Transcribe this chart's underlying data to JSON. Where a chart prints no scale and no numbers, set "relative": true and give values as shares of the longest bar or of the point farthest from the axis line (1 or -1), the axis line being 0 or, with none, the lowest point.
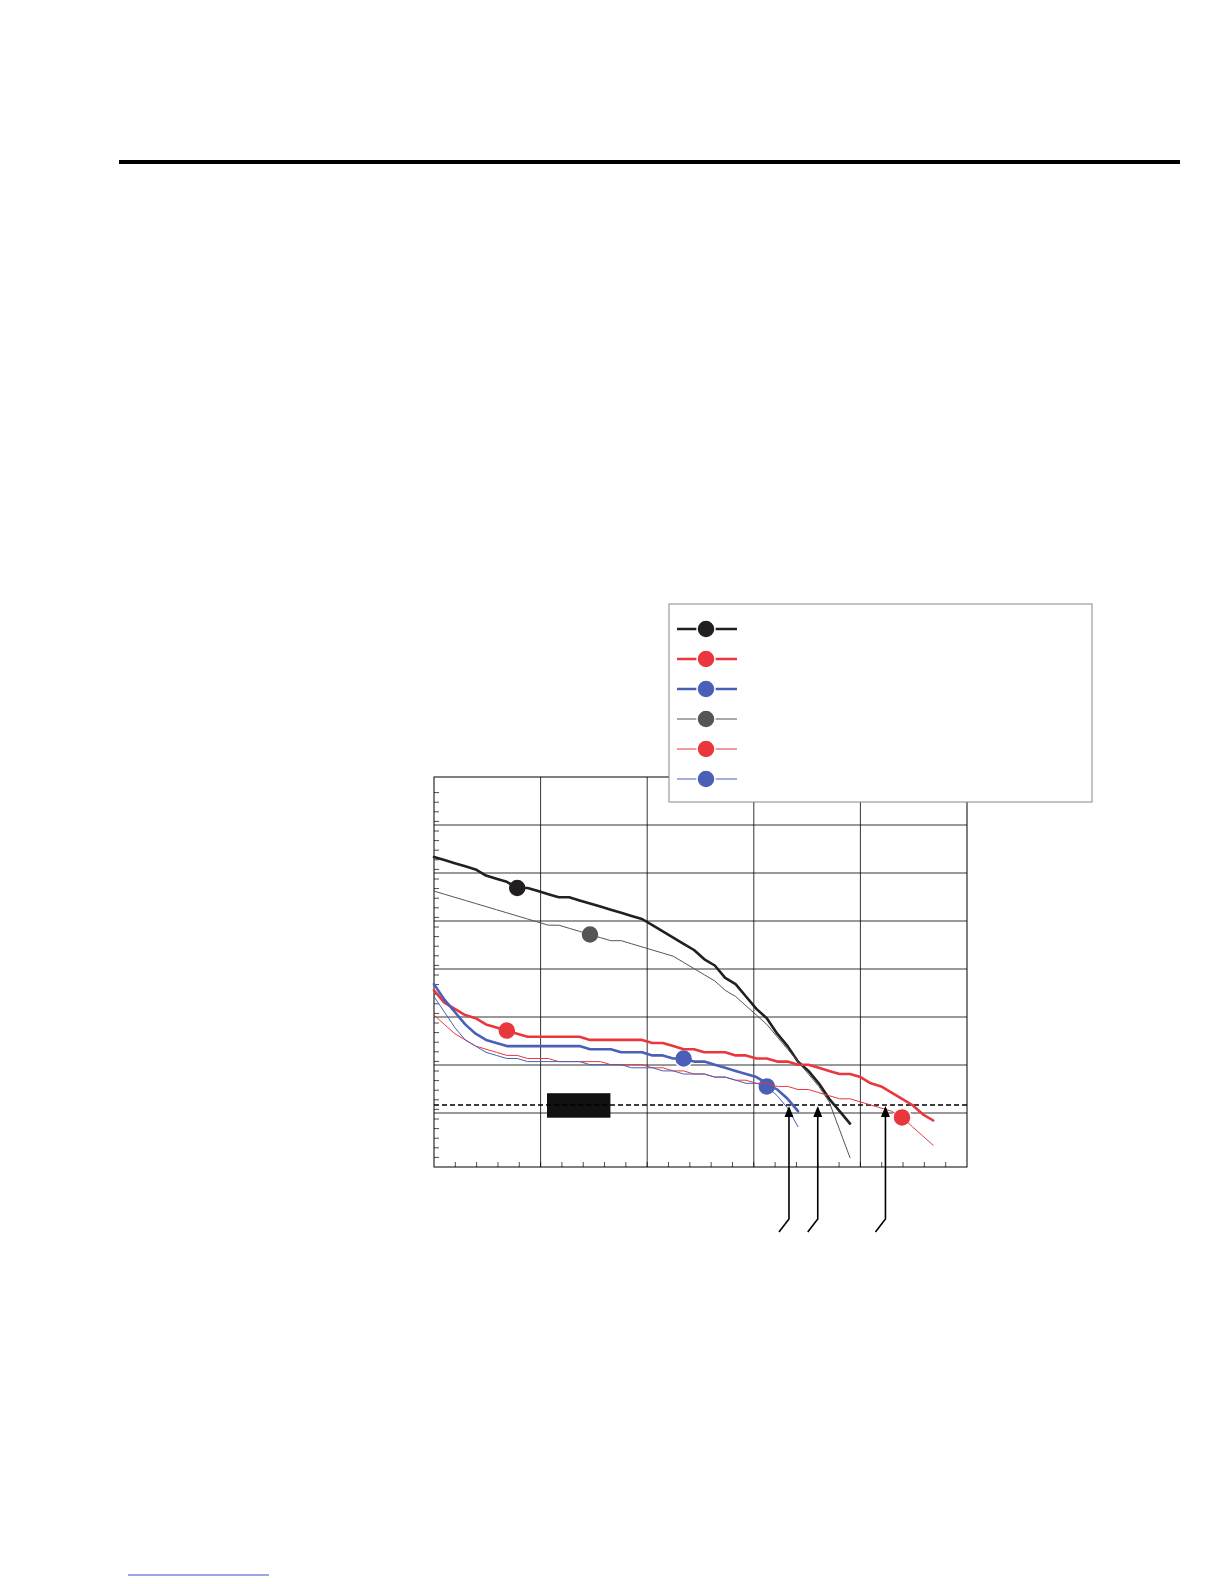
{
  "chart_data": {
    "type": "line",
    "relative": true,
    "grid": true,
    "categories": [
      null,
      null,
      null,
      null,
      null,
      null,
      null,
      null,
      null,
      null,
      null,
      null,
      null,
      null,
      null,
      null,
      null,
      null,
      null,
      null,
      null,
      null,
      null,
      null,
      null,
      null,
      null,
      null,
      null,
      null,
      null,
      null,
      null,
      null,
      null,
      null,
      null,
      null,
      null,
      null,
      null,
      null,
      null,
      null,
      null,
      null,
      null,
      null,
      null,
      null,
      null
    ],
    "series": [
      {
        "color": "#231f20",
        "values": [
          1.0,
          0.99,
          0.98,
          0.97,
          0.96,
          0.94,
          0.93,
          0.92,
          0.9,
          0.9,
          0.89,
          0.88,
          0.87,
          0.87,
          0.86,
          0.85,
          0.84,
          0.83,
          0.82,
          0.81,
          0.8,
          0.78,
          0.76,
          0.74,
          0.72,
          0.7,
          0.67,
          0.65,
          0.61,
          0.59,
          0.55,
          0.51,
          0.48,
          0.43,
          0.39,
          0.34,
          0.31,
          0.27,
          0.22,
          0.18,
          0.14,
          null,
          null,
          null,
          null,
          null,
          null,
          null,
          null,
          null,
          null
        ]
      },
      {
        "color": "#e8383d",
        "values": [
          0.57,
          0.53,
          0.51,
          0.49,
          0.48,
          0.46,
          0.45,
          0.44,
          0.43,
          0.42,
          0.42,
          0.42,
          0.42,
          0.42,
          0.42,
          0.41,
          0.41,
          0.41,
          0.41,
          0.41,
          0.41,
          0.4,
          0.4,
          0.39,
          0.38,
          0.38,
          0.37,
          0.37,
          0.37,
          0.36,
          0.36,
          0.35,
          0.35,
          0.34,
          0.34,
          0.33,
          0.33,
          0.32,
          0.31,
          0.3,
          0.3,
          0.29,
          0.27,
          0.26,
          0.24,
          0.22,
          0.2,
          0.17,
          0.15,
          null,
          null
        ]
      },
      {
        "color": "#4a5fb8",
        "values": [
          0.59,
          0.54,
          0.5,
          0.46,
          0.43,
          0.41,
          0.4,
          0.39,
          0.39,
          0.39,
          0.39,
          0.39,
          0.39,
          0.39,
          0.39,
          0.38,
          0.38,
          0.38,
          0.37,
          0.37,
          0.37,
          0.36,
          0.36,
          0.35,
          0.35,
          0.34,
          0.34,
          0.33,
          0.32,
          0.31,
          0.3,
          0.29,
          0.27,
          0.25,
          0.22,
          0.18,
          null,
          null,
          null,
          null,
          null,
          null,
          null,
          null,
          null,
          null,
          null,
          null,
          null,
          null,
          null
        ]
      },
      {
        "color": "#555555",
        "values": [
          0.89,
          0.88,
          0.87,
          0.86,
          0.85,
          0.84,
          0.83,
          0.82,
          0.81,
          0.8,
          0.79,
          0.78,
          0.78,
          0.77,
          0.76,
          0.75,
          0.74,
          0.73,
          0.73,
          0.72,
          0.71,
          0.7,
          0.69,
          0.68,
          0.66,
          0.64,
          0.62,
          0.6,
          0.57,
          0.55,
          0.52,
          0.49,
          0.46,
          0.42,
          0.38,
          0.34,
          0.3,
          0.26,
          0.21,
          0.12,
          0.03,
          null,
          null,
          null,
          null,
          null,
          null,
          null,
          null,
          null,
          null
        ]
      },
      {
        "color": "#e8383d",
        "values": [
          0.49,
          0.46,
          0.43,
          0.41,
          0.39,
          0.38,
          0.37,
          0.36,
          0.36,
          0.35,
          0.35,
          0.35,
          0.34,
          0.34,
          0.34,
          0.34,
          0.34,
          0.33,
          0.33,
          0.33,
          0.33,
          0.32,
          0.32,
          0.31,
          0.31,
          0.3,
          0.3,
          0.29,
          0.29,
          0.28,
          0.28,
          0.27,
          0.27,
          0.26,
          0.26,
          0.25,
          0.25,
          0.24,
          0.23,
          0.22,
          0.22,
          0.21,
          0.2,
          0.19,
          0.18,
          0.16,
          0.13,
          0.1,
          0.07,
          null,
          null
        ]
      },
      {
        "color": "#4a5fb8",
        "values": [
          0.55,
          0.5,
          0.45,
          0.41,
          0.39,
          0.37,
          0.36,
          0.35,
          0.35,
          0.34,
          0.34,
          0.34,
          0.34,
          0.34,
          0.34,
          0.33,
          0.33,
          0.33,
          0.33,
          0.32,
          0.32,
          0.32,
          0.31,
          0.31,
          0.3,
          0.3,
          0.3,
          0.29,
          0.29,
          0.28,
          0.27,
          0.27,
          0.26,
          0.23,
          0.19,
          0.13,
          null,
          null,
          null,
          null,
          null,
          null,
          null,
          null,
          null,
          null,
          null,
          null,
          null,
          null,
          null
        ]
      }
    ],
    "ref_lines": [
      {
        "axis": "y",
        "value": 0.2,
        "line_style": "dashed",
        "color": "#000000"
      }
    ]
  }
}
